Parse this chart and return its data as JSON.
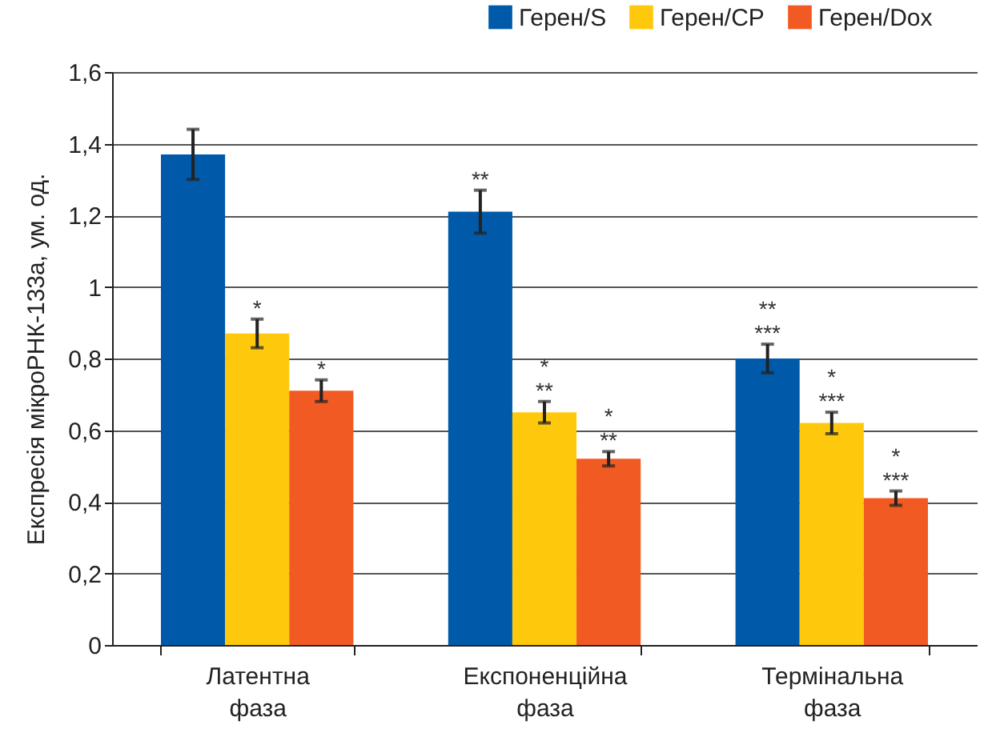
{
  "chart_data": {
    "type": "bar",
    "ylabel": "Експресія мікроРНК-133а, ум. од.",
    "categories": [
      "Латентна фаза",
      "Експоненційна фаза",
      "Термінальна фаза"
    ],
    "series": [
      {
        "name": "Герен/S",
        "color": "#005aa9",
        "values": [
          1.37,
          1.21,
          0.8
        ],
        "errors": [
          0.07,
          0.06,
          0.04
        ],
        "value_labels": [
          null,
          "**",
          "**\n***"
        ]
      },
      {
        "name": "Герен/CP",
        "color": "#fec90d",
        "values": [
          0.87,
          0.65,
          0.62
        ],
        "errors": [
          0.04,
          0.03,
          0.03
        ],
        "value_labels": [
          "*",
          "*\n**",
          "*\n***"
        ]
      },
      {
        "name": "Герен/Dox",
        "color": "#f15a22",
        "values": [
          0.71,
          0.52,
          0.41
        ],
        "errors": [
          0.03,
          0.02,
          0.02
        ],
        "value_labels": [
          "*",
          "*\n**",
          "*\n***"
        ]
      }
    ],
    "ylim": [
      0,
      1.6
    ],
    "yticks": [
      0,
      {
        "value": 0.2,
        "label": "0,2"
      },
      {
        "value": 0.4,
        "label": "0,4"
      },
      {
        "value": 0.6,
        "label": "0,6"
      },
      {
        "value": 0.8,
        "label": "0,8"
      },
      1,
      {
        "value": 1.2,
        "label": "1,2"
      },
      {
        "value": 1.4,
        "label": "1,4"
      },
      {
        "value": 1.6,
        "label": "1,6"
      }
    ],
    "grid": "y",
    "legend": "top right"
  }
}
